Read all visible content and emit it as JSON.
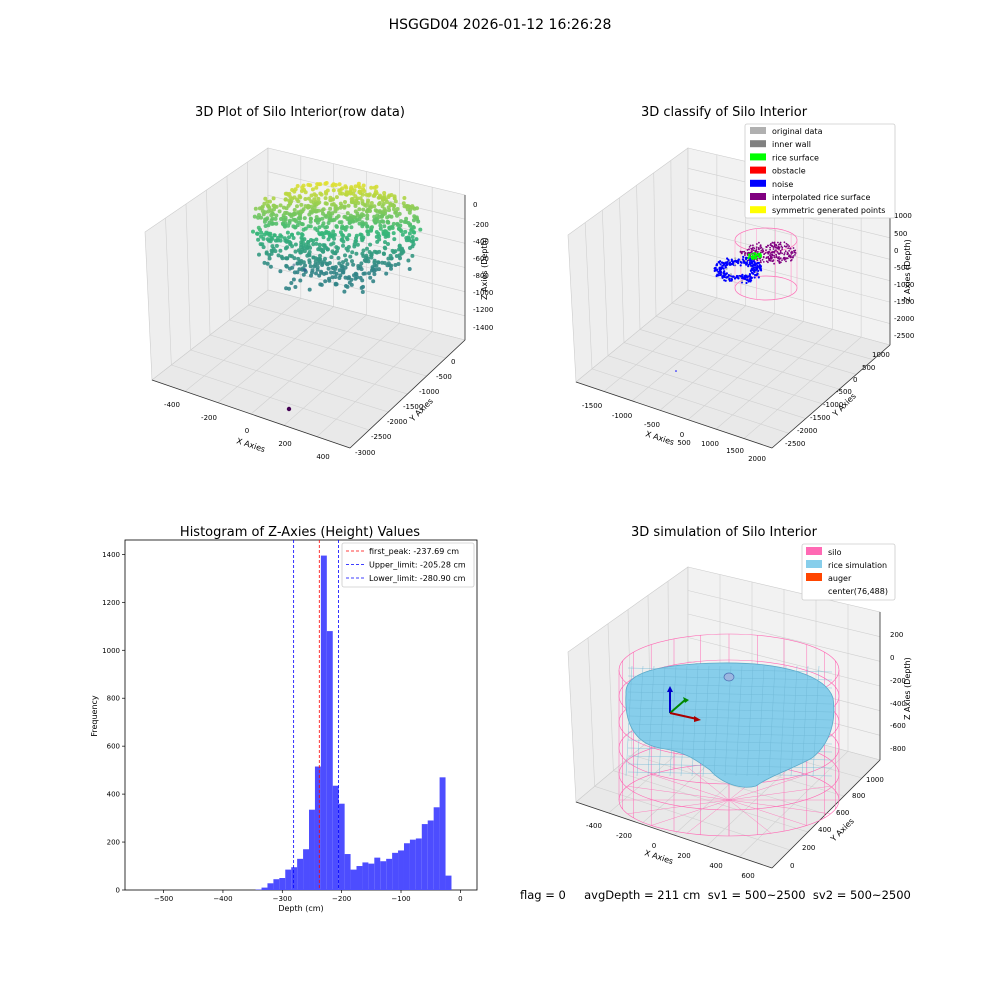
{
  "figure": {
    "title": "HSGGD04 2026-01-12 16:26:28",
    "footer": "flag = 0     avgDepth = 211 cm  sv1 = 500~2500  sv2 = 500~2500"
  },
  "chart_data": [
    {
      "type": "scatter",
      "subtype": "3d",
      "title": "3D Plot of Silo Interior(row data)",
      "xlabel": "X Axies",
      "ylabel": "Y Axies",
      "zlabel": "Z Axies (Depth)",
      "xticks": [
        "-400",
        "-200",
        "0",
        "200",
        "400"
      ],
      "yticks": [
        "0",
        "-500",
        "-1000",
        "-1500",
        "-2000",
        "-2500",
        "-3000"
      ],
      "zticks": [
        "0",
        "-200",
        "-400",
        "-600",
        "-800",
        "-1000",
        "-1200",
        "-1400"
      ],
      "colormap": [
        "#440154",
        "#31688e",
        "#35b779",
        "#fde725"
      ],
      "grid": true
    },
    {
      "type": "scatter",
      "subtype": "3d",
      "title": "3D classify of Silo Interior",
      "xlabel": "X Axies",
      "ylabel": "Y Axies",
      "zlabel": "Z Axies (Depth)",
      "xticks": [
        "-1500",
        "-1000",
        "-500",
        "0",
        "500",
        "1000",
        "1500",
        "2000"
      ],
      "yticks": [
        "1000",
        "500",
        "0",
        "-500",
        "-1000",
        "-1500",
        "-2000",
        "-2500"
      ],
      "zticks": [
        "1000",
        "500",
        "0",
        "-500",
        "-1000",
        "-1500",
        "-2000",
        "-2500"
      ],
      "legend_position": "top-right",
      "legend": [
        {
          "label": "original data",
          "color": "#b0b0b0"
        },
        {
          "label": "inner wall",
          "color": "#808080"
        },
        {
          "label": "rice surface",
          "color": "#00ff00"
        },
        {
          "label": "obstacle",
          "color": "#ff0000"
        },
        {
          "label": "noise",
          "color": "#0000ff"
        },
        {
          "label": "interpolated rice surface",
          "color": "#800080"
        },
        {
          "label": "symmetric generated points",
          "color": "#ffff00"
        }
      ],
      "grid": true
    },
    {
      "type": "bar",
      "subtype": "histogram",
      "title": "Histogram of Z-Axies (Height) Values",
      "xlabel": "Depth (cm)",
      "ylabel": "Frequency",
      "xlim": [
        -565,
        28
      ],
      "ylim": [
        0,
        1460
      ],
      "xticks": [
        -500,
        -400,
        -300,
        -200,
        -100,
        0
      ],
      "yticks": [
        0,
        200,
        400,
        600,
        800,
        1000,
        1200,
        1400
      ],
      "bar_color": "#4d4dff",
      "bins": [
        {
          "x0": -345,
          "x1": -335,
          "v": 2
        },
        {
          "x0": -335,
          "x1": -325,
          "v": 10
        },
        {
          "x0": -325,
          "x1": -315,
          "v": 28
        },
        {
          "x0": -315,
          "x1": -305,
          "v": 45
        },
        {
          "x0": -305,
          "x1": -295,
          "v": 50
        },
        {
          "x0": -295,
          "x1": -285,
          "v": 85
        },
        {
          "x0": -285,
          "x1": -275,
          "v": 95
        },
        {
          "x0": -275,
          "x1": -265,
          "v": 130
        },
        {
          "x0": -265,
          "x1": -255,
          "v": 170
        },
        {
          "x0": -255,
          "x1": -245,
          "v": 335
        },
        {
          "x0": -245,
          "x1": -235,
          "v": 515
        },
        {
          "x0": -235,
          "x1": -225,
          "v": 1395
        },
        {
          "x0": -225,
          "x1": -215,
          "v": 1080
        },
        {
          "x0": -215,
          "x1": -205,
          "v": 435
        },
        {
          "x0": -205,
          "x1": -195,
          "v": 360
        },
        {
          "x0": -195,
          "x1": -185,
          "v": 150
        },
        {
          "x0": -185,
          "x1": -175,
          "v": 85
        },
        {
          "x0": -175,
          "x1": -165,
          "v": 100
        },
        {
          "x0": -165,
          "x1": -155,
          "v": 115
        },
        {
          "x0": -155,
          "x1": -145,
          "v": 110
        },
        {
          "x0": -145,
          "x1": -135,
          "v": 135
        },
        {
          "x0": -135,
          "x1": -125,
          "v": 120
        },
        {
          "x0": -125,
          "x1": -115,
          "v": 130
        },
        {
          "x0": -115,
          "x1": -105,
          "v": 155
        },
        {
          "x0": -105,
          "x1": -95,
          "v": 165
        },
        {
          "x0": -95,
          "x1": -85,
          "v": 195
        },
        {
          "x0": -85,
          "x1": -75,
          "v": 210
        },
        {
          "x0": -75,
          "x1": -65,
          "v": 215
        },
        {
          "x0": -65,
          "x1": -55,
          "v": 275
        },
        {
          "x0": -55,
          "x1": -45,
          "v": 290
        },
        {
          "x0": -45,
          "x1": -35,
          "v": 345
        },
        {
          "x0": -35,
          "x1": -25,
          "v": 470
        },
        {
          "x0": -25,
          "x1": -15,
          "v": 60
        }
      ],
      "vlines": [
        {
          "label": "first_peak: -237.69 cm",
          "x": -237.69,
          "color": "#ff0000"
        },
        {
          "label": "Upper_limit: -205.28 cm",
          "x": -205.28,
          "color": "#0000ff"
        },
        {
          "label": "Lower_limit: -280.90 cm",
          "x": -280.9,
          "color": "#0000ff"
        }
      ],
      "legend_position": "top-right"
    },
    {
      "type": "area",
      "subtype": "3d-surface",
      "title": "3D simulation of Silo Interior",
      "xlabel": "X Axies",
      "ylabel": "Y Axies",
      "zlabel": "Z Axies (Depth)",
      "xticks": [
        "-400",
        "-200",
        "0",
        "200",
        "400",
        "600"
      ],
      "yticks": [
        "0",
        "200",
        "400",
        "600",
        "800",
        "1000"
      ],
      "zticks": [
        "200",
        "0",
        "-200",
        "-400",
        "-600",
        "-800"
      ],
      "legend_position": "top-right",
      "legend": [
        {
          "label": "silo",
          "color": "#ff69b4"
        },
        {
          "label": "rice simulation",
          "color": "#87ceeb"
        },
        {
          "label": "auger",
          "color": "#ff4500"
        },
        {
          "label": "center(76,488)",
          "color": ""
        }
      ],
      "grid": true
    }
  ]
}
